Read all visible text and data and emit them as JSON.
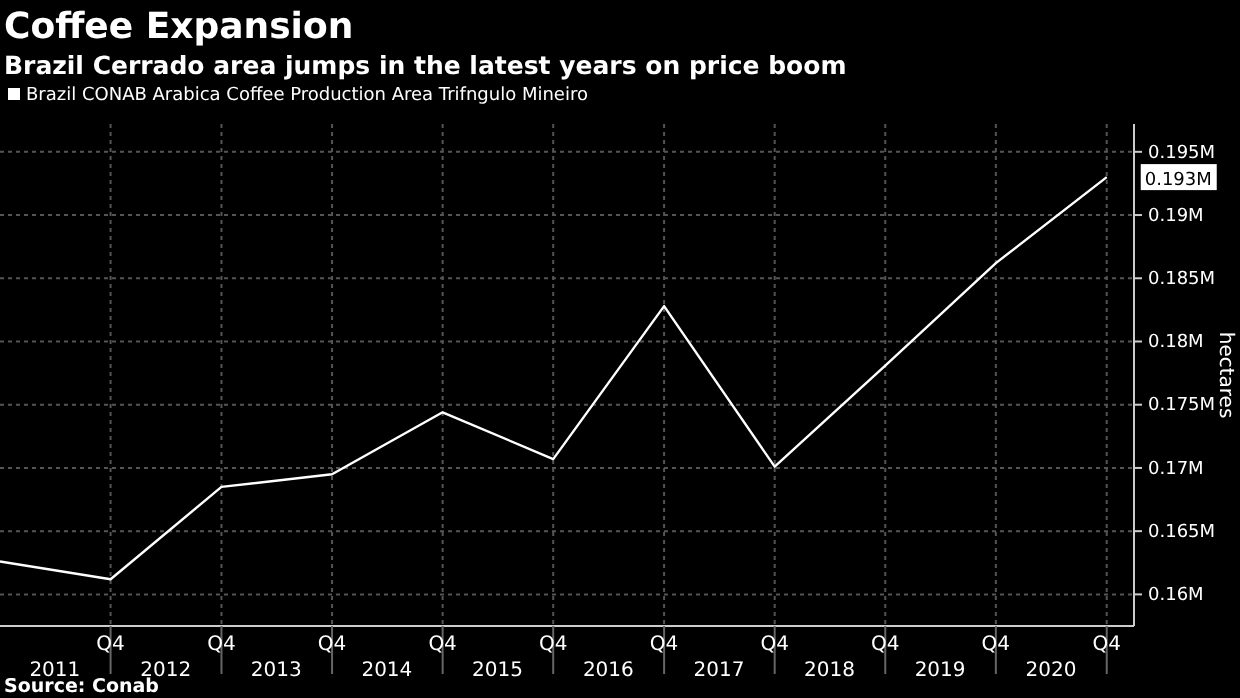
{
  "chart_data": {
    "type": "line",
    "title": "Coffee Expansion",
    "subtitle": "Brazil Cerrado area jumps in the latest years on price boom",
    "ylabel": "hectares",
    "x": [
      "2011-01",
      "2012-01",
      "2013-01",
      "2014-01",
      "2015-01",
      "2016-01",
      "2017-01",
      "2018-01",
      "2019-01",
      "2020-01",
      "2021-01"
    ],
    "series": [
      {
        "name": "Brazil CONAB Arabica Coffee Production Area Trifngulo Mineiro",
        "color": "#ffffff",
        "values": [
          0.1626,
          0.1612,
          0.1685,
          0.1695,
          0.1744,
          0.1707,
          0.1828,
          0.1701,
          0.1781,
          0.1862,
          0.193
        ]
      }
    ],
    "xlim": [
      "2011-01",
      "2021-04"
    ],
    "xticks": [
      {
        "value": "2012-01",
        "label": "Q4"
      },
      {
        "value": "2013-01",
        "label": "Q4"
      },
      {
        "value": "2014-01",
        "label": "Q4"
      },
      {
        "value": "2015-01",
        "label": "Q4"
      },
      {
        "value": "2016-01",
        "label": "Q4"
      },
      {
        "value": "2017-01",
        "label": "Q4"
      },
      {
        "value": "2018-01",
        "label": "Q4"
      },
      {
        "value": "2019-01",
        "label": "Q4"
      },
      {
        "value": "2020-01",
        "label": "Q4"
      },
      {
        "value": "2021-01",
        "label": "Q4"
      }
    ],
    "x2lim": [
      "2011-01",
      "2021-04"
    ],
    "x2ticks": [
      {
        "value": "2011-07",
        "label": "2011"
      },
      {
        "value": "2012-07",
        "label": "2012"
      },
      {
        "value": "2013-07",
        "label": "2013"
      },
      {
        "value": "2014-07",
        "label": "2014"
      },
      {
        "value": "2015-07",
        "label": "2015"
      },
      {
        "value": "2016-07",
        "label": "2016"
      },
      {
        "value": "2017-07",
        "label": "2017"
      },
      {
        "value": "2018-07",
        "label": "2018"
      },
      {
        "value": "2019-07",
        "label": "2019"
      },
      {
        "value": "2020-07",
        "label": "2020"
      }
    ],
    "ylim": [
      0.1575,
      0.1972
    ],
    "yticks": [
      {
        "value": 0.16,
        "label": "0.16M"
      },
      {
        "value": 0.165,
        "label": "0.165M"
      },
      {
        "value": 0.17,
        "label": "0.17M"
      },
      {
        "value": 0.175,
        "label": "0.175M"
      },
      {
        "value": 0.18,
        "label": "0.18M"
      },
      {
        "value": 0.185,
        "label": "0.185M"
      },
      {
        "value": 0.19,
        "label": "0.19M"
      },
      {
        "value": 0.195,
        "label": "0.195M"
      }
    ],
    "grid": true,
    "legend": "top left",
    "marker": "none",
    "line_style": "solid",
    "annotations": [
      {
        "text": "0.193M",
        "x": "2021-01",
        "y": 0.193
      },
      "Source: Conab"
    ]
  }
}
